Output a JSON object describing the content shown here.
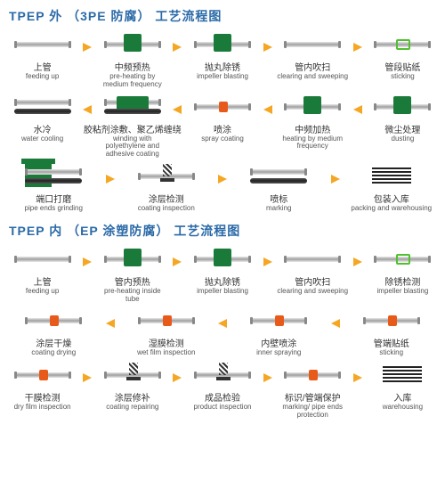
{
  "colors": {
    "arrow": "#f5a623",
    "green": "#1a7a3a",
    "orange": "#e85a1a",
    "title": "#2b6aa8"
  },
  "fonts": {
    "title": 14,
    "cn": 10,
    "en": 8
  },
  "sections": [
    {
      "title": "TPEP 外  （3PE 防腐） 工艺流程图",
      "rows": [
        {
          "dir": "right",
          "steps": [
            {
              "cn": "上管",
              "en": "feeding up",
              "v": "pipe"
            },
            {
              "cn": "中频预热",
              "en": "pre-heating by medium frequency",
              "v": "box"
            },
            {
              "cn": "抛丸除锈",
              "en": "impeller blasting",
              "v": "box"
            },
            {
              "cn": "管内吹扫",
              "en": "clearing and sweeping",
              "v": "pipe"
            },
            {
              "cn": "管段贴纸",
              "en": "sticking",
              "v": "ring"
            }
          ]
        },
        {
          "dir": "left",
          "steps": [
            {
              "cn": "水冷",
              "en": "water cooling",
              "v": "dbl"
            },
            {
              "cn": "胶粘剂涂敷、聚乙烯缠绕",
              "en": "winding with polyethylene and adhesive coating",
              "v": "dbox"
            },
            {
              "cn": "喷涂",
              "en": "spray coating",
              "v": "mark"
            },
            {
              "cn": "中频加热",
              "en": "heating by medium frequency",
              "v": "box"
            },
            {
              "cn": "微尘处理",
              "en": "dusting",
              "v": "box"
            }
          ]
        },
        {
          "dir": "right",
          "steps": [
            {
              "cn": "端口打磨",
              "en": "pipe ends grinding",
              "v": "machine"
            },
            {
              "cn": "涂层检测",
              "en": "coating inspection",
              "v": "spring"
            },
            {
              "cn": "喷标",
              "en": "marking",
              "v": "dbl"
            },
            {
              "cn": "包装入库",
              "en": "packing and warehousing",
              "v": "stack"
            }
          ]
        }
      ]
    },
    {
      "title": "TPEP 内  （EP 涂塑防腐） 工艺流程图",
      "rows": [
        {
          "dir": "right",
          "steps": [
            {
              "cn": "上管",
              "en": "feeding up",
              "v": "pipe"
            },
            {
              "cn": "管内预热",
              "en": "pre-heating inside tube",
              "v": "box"
            },
            {
              "cn": "抛丸除锈",
              "en": "impeller blasting",
              "v": "box"
            },
            {
              "cn": "管内吹扫",
              "en": "clearing and sweeping",
              "v": "pipe"
            },
            {
              "cn": "除锈检测",
              "en": "impeller blasting",
              "v": "ring"
            }
          ]
        },
        {
          "dir": "left",
          "steps": [
            {
              "cn": "涂层干燥",
              "en": "coating drying",
              "v": "mark"
            },
            {
              "cn": "湿膜检测",
              "en": "wet film inspection",
              "v": "mark"
            },
            {
              "cn": "内壁喷涂",
              "en": "inner spraying",
              "v": "mark"
            },
            {
              "cn": "管端贴纸",
              "en": "sticking",
              "v": "mark"
            }
          ]
        },
        {
          "dir": "right",
          "steps": [
            {
              "cn": "干膜检测",
              "en": "dry film inspection",
              "v": "mark"
            },
            {
              "cn": "涂层修补",
              "en": "coating repairing",
              "v": "spring"
            },
            {
              "cn": "成品检验",
              "en": "product inspection",
              "v": "spring"
            },
            {
              "cn": "标识/管端保护",
              "en": "marking/ pipe ends protection",
              "v": "mark"
            },
            {
              "cn": "入库",
              "en": "warehousing",
              "v": "stack"
            }
          ]
        }
      ]
    }
  ]
}
